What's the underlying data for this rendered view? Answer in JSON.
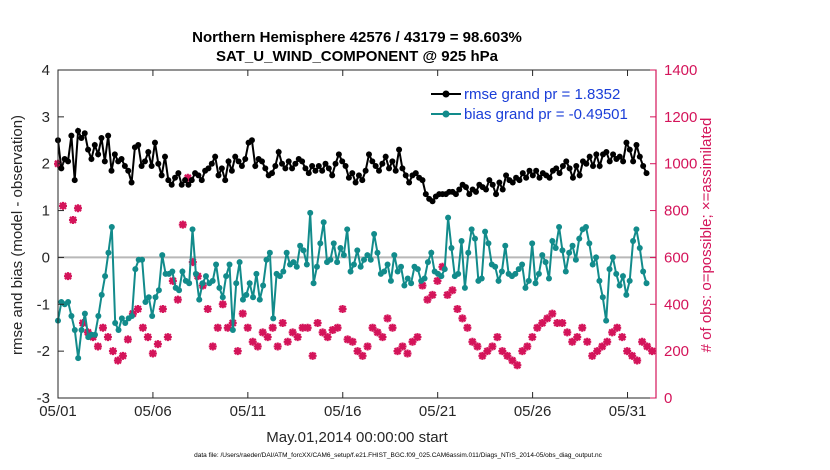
{
  "chart_data": {
    "type": "line",
    "title_line1": "Northern Hemisphere 42576 / 43179 = 98.603%",
    "title_line2": "SAT_U_WIND_COMPONENT @ 925 hPa",
    "xlabel": "May.01,2014 00:00:00 start",
    "ylabel": "rmse and bias (model - observation)",
    "y2label": "# of obs: o=possible; ×=assimilated",
    "footnote": "data file: /Users/raeder/DAI/ATM_forcXX/CAM6_setup/f.e21.FHIST_BGC.f09_025.CAM6assim.011/Diags_NTrS_2014-05/obs_diag_output.nc",
    "xlim": [
      0,
      31.5
    ],
    "ylim": [
      -3,
      4
    ],
    "y2lim": [
      0,
      1400
    ],
    "x_ticks": [
      0,
      5,
      10,
      15,
      20,
      25,
      30
    ],
    "x_tick_labels": [
      "05/01",
      "05/06",
      "05/11",
      "05/16",
      "05/21",
      "05/26",
      "05/31"
    ],
    "y_ticks": [
      -3,
      -2,
      -1,
      0,
      1,
      2,
      3,
      4
    ],
    "y_tick_labels": [
      "-3",
      "-2",
      "-1",
      "0",
      "1",
      "2",
      "3",
      "4"
    ],
    "y2_ticks": [
      0,
      200,
      400,
      600,
      800,
      1000,
      1200,
      1400
    ],
    "y2_tick_labels": [
      "0",
      "200",
      "400",
      "600",
      "800",
      "1000",
      "1200",
      "1400"
    ],
    "legend_position": "top-right",
    "zero_line": 0,
    "colors": {
      "rmse": "#000000",
      "bias": "#128b8b",
      "obs": "#d4145a",
      "legend_text": "#1a3ed8",
      "zero_line": "#b8b8b8"
    },
    "series": [
      {
        "name": "rmse grand pr = 1.8352",
        "axis": "left",
        "values": [
          2.5,
          1.9,
          2.1,
          2.05,
          2.6,
          1.65,
          2.7,
          2.55,
          2.65,
          2.3,
          2.1,
          2.4,
          2.2,
          2.55,
          2.05,
          2.6,
          1.85,
          2.2,
          2.05,
          2.1,
          1.95,
          1.85,
          1.6,
          2.35,
          2.4,
          1.95,
          2.05,
          2.25,
          1.95,
          2.45,
          2.0,
          1.75,
          2.15,
          1.65,
          1.55,
          1.7,
          1.8,
          1.55,
          1.65,
          1.55,
          1.65,
          1.8,
          1.75,
          1.65,
          1.85,
          1.9,
          2.0,
          2.15,
          1.75,
          1.9,
          1.65,
          2.05,
          1.85,
          2.15,
          2.05,
          1.95,
          2.1,
          2.45,
          2.5,
          1.95,
          2.1,
          2.05,
          1.9,
          1.75,
          1.8,
          1.95,
          2.25,
          2.0,
          1.9,
          2.05,
          1.9,
          2.0,
          2.1,
          2.05,
          1.9,
          1.8,
          1.95,
          1.85,
          1.95,
          1.85,
          2.0,
          1.9,
          1.75,
          2.0,
          2.2,
          2.05,
          1.95,
          1.7,
          1.8,
          1.6,
          1.75,
          1.65,
          1.85,
          2.2,
          2.05,
          1.95,
          1.85,
          2.0,
          2.15,
          1.9,
          2.05,
          1.85,
          2.3,
          1.9,
          1.75,
          1.6,
          1.75,
          1.8,
          1.7,
          1.65,
          1.35,
          1.25,
          1.2,
          1.3,
          1.35,
          1.35,
          1.35,
          1.4,
          1.4,
          1.35,
          1.45,
          1.55,
          1.5,
          1.35,
          1.45,
          1.4,
          1.55,
          1.5,
          1.45,
          1.65,
          1.55,
          1.35,
          1.6,
          1.45,
          1.75,
          1.65,
          1.6,
          1.7,
          1.65,
          1.8,
          1.7,
          1.85,
          1.75,
          1.85,
          1.7,
          1.8,
          1.75,
          1.7,
          1.85,
          1.9,
          1.8,
          1.95,
          2.05,
          1.9,
          1.7,
          1.95,
          1.75,
          2.05,
          2.0,
          2.15,
          1.95,
          2.2,
          1.95,
          2.2,
          2.25,
          2.05,
          2.2,
          2.1,
          2.15,
          2.05,
          2.45,
          2.3,
          2.05,
          2.4,
          2.15,
          1.95,
          1.8
        ]
      },
      {
        "name": "bias grand pr = -0.49501",
        "axis": "left",
        "values": [
          -1.35,
          -0.95,
          -1.0,
          -0.95,
          -1.25,
          -1.55,
          -2.15,
          -1.55,
          -1.2,
          -1.7,
          -1.65,
          -1.65,
          -1.25,
          -0.8,
          -0.4,
          0.1,
          0.65,
          -1.4,
          -1.55,
          -1.3,
          -1.4,
          -1.3,
          -1.25,
          -0.25,
          -0.05,
          -0.05,
          -0.95,
          -0.85,
          -1.25,
          -0.85,
          -0.7,
          0.05,
          -0.35,
          -0.35,
          -0.3,
          -0.65,
          -0.7,
          -0.3,
          -0.5,
          -0.55,
          0.6,
          -0.35,
          -0.9,
          -0.55,
          -0.4,
          -0.55,
          -0.5,
          -0.15,
          -0.65,
          -0.85,
          -0.4,
          -0.15,
          -1.55,
          -0.55,
          -0.1,
          -0.9,
          -0.8,
          -0.55,
          -0.85,
          -0.35,
          -0.9,
          -0.6,
          -0.05,
          0.1,
          -1.3,
          -0.35,
          -0.4,
          -0.3,
          0.1,
          -0.15,
          -0.1,
          -0.2,
          0.25,
          0.15,
          -0.15,
          0.95,
          -0.55,
          -0.2,
          0.3,
          0.75,
          -0.1,
          -0.05,
          0.3,
          -0.1,
          0.2,
          0.05,
          0.6,
          -0.3,
          -0.15,
          0.15,
          -0.2,
          -0.05,
          0.05,
          -0.05,
          0.5,
          0.1,
          -0.35,
          -0.3,
          -0.15,
          -0.5,
          0.05,
          -0.3,
          -0.2,
          -0.6,
          -0.45,
          -0.55,
          -0.2,
          -0.25,
          -0.5,
          -0.45,
          -0.1,
          0.1,
          -0.3,
          -0.35,
          -0.4,
          -0.25,
          0.85,
          0.2,
          -0.4,
          -0.35,
          0.35,
          -0.65,
          0.1,
          0.6,
          0.4,
          -0.5,
          -0.45,
          0.55,
          0.3,
          -0.15,
          -0.2,
          -0.5,
          -0.3,
          0.25,
          -0.35,
          -0.4,
          -0.35,
          -0.25,
          -0.15,
          -0.65,
          -0.5,
          0.3,
          -0.55,
          -0.35,
          0.05,
          -0.1,
          -0.45,
          0.35,
          0.2,
          0.65,
          0.15,
          -0.3,
          0.1,
          0.25,
          -0.05,
          0.4,
          0.6,
          0.65,
          0.3,
          -0.15,
          0.0,
          -0.5,
          -0.85,
          -1.35,
          -0.25,
          0.0,
          -0.35,
          -0.6,
          -0.4,
          -0.8,
          -0.5,
          0.35,
          0.6,
          0.2,
          -0.3,
          -0.55
        ]
      },
      {
        "name": "assimilated",
        "axis": "right",
        "type": "scatter",
        "values": [
          1000,
          820,
          520,
          760,
          810,
          320,
          280,
          260,
          220,
          300,
          260,
          200,
          160,
          180,
          250,
          360,
          380,
          300,
          260,
          190,
          230,
          380,
          260,
          500,
          420,
          740,
          940,
          580,
          520,
          480,
          380,
          220,
          300,
          400,
          300,
          320,
          200,
          360,
          300,
          240,
          220,
          280,
          260,
          300,
          220,
          320,
          240,
          280,
          260,
          300,
          300,
          180,
          320,
          280,
          260,
          290,
          300,
          380,
          250,
          240,
          200,
          180,
          220,
          300,
          280,
          260,
          340,
          300,
          200,
          220,
          190,
          240,
          260,
          480,
          420,
          440,
          500,
          560,
          440,
          460,
          380,
          340,
          300,
          240,
          220,
          180,
          200,
          220,
          260,
          200,
          180,
          160,
          140,
          200,
          220,
          260,
          300,
          320,
          340,
          360,
          320,
          320,
          280,
          240,
          260,
          300,
          240,
          180,
          200,
          220,
          240,
          280,
          300,
          260,
          200,
          180,
          160,
          240,
          220,
          200
        ]
      }
    ]
  }
}
